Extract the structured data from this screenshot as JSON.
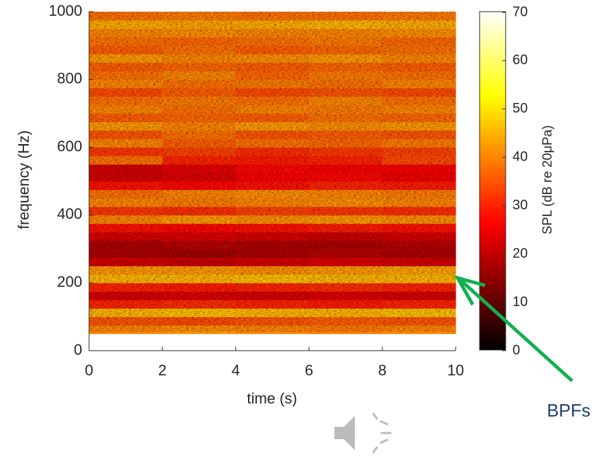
{
  "chart_data": {
    "type": "heatmap",
    "xlabel": "time (s)",
    "ylabel": "frequency (Hz)",
    "xlim": [
      0,
      10
    ],
    "xticks": [
      0,
      2,
      4,
      6,
      8,
      10
    ],
    "ylim": [
      0,
      1000
    ],
    "yticks": [
      0,
      200,
      400,
      600,
      800,
      1000
    ],
    "x_bins": [
      0,
      2,
      4,
      6,
      8,
      10
    ],
    "y_bins": [
      50,
      75,
      100,
      125,
      150,
      175,
      200,
      225,
      250,
      275,
      300,
      325,
      350,
      375,
      400,
      425,
      450,
      475,
      500,
      525,
      550,
      575,
      600,
      625,
      650,
      675,
      700,
      725,
      750,
      775,
      800,
      825,
      850,
      875,
      900,
      925,
      950,
      975,
      1000
    ],
    "z": [
      [
        40,
        41,
        40,
        39,
        40
      ],
      [
        35,
        34,
        35,
        36,
        35
      ],
      [
        45,
        46,
        45,
        45,
        46
      ],
      [
        30,
        31,
        30,
        29,
        30
      ],
      [
        22,
        23,
        22,
        23,
        22
      ],
      [
        30,
        29,
        30,
        31,
        30
      ],
      [
        45,
        45,
        46,
        45,
        45
      ],
      [
        42,
        42,
        41,
        42,
        43
      ],
      [
        22,
        21,
        22,
        23,
        22
      ],
      [
        18,
        17,
        18,
        19,
        18
      ],
      [
        18,
        19,
        18,
        18,
        19
      ],
      [
        22,
        23,
        22,
        21,
        22
      ],
      [
        28,
        27,
        28,
        29,
        28
      ],
      [
        40,
        42,
        41,
        42,
        41
      ],
      [
        32,
        31,
        33,
        32,
        31
      ],
      [
        40,
        39,
        40,
        41,
        40
      ],
      [
        38,
        40,
        41,
        40,
        39
      ],
      [
        28,
        27,
        28,
        30,
        29
      ],
      [
        22,
        23,
        26,
        27,
        25
      ],
      [
        22,
        24,
        27,
        26,
        26
      ],
      [
        38,
        30,
        29,
        30,
        34
      ],
      [
        32,
        33,
        31,
        32,
        33
      ],
      [
        40,
        36,
        38,
        37,
        39
      ],
      [
        35,
        38,
        35,
        36,
        35
      ],
      [
        42,
        40,
        42,
        41,
        42
      ],
      [
        36,
        37,
        36,
        38,
        37
      ],
      [
        40,
        38,
        40,
        39,
        40
      ],
      [
        38,
        39,
        38,
        40,
        38
      ],
      [
        34,
        36,
        34,
        35,
        34
      ],
      [
        40,
        38,
        39,
        38,
        40
      ],
      [
        38,
        40,
        37,
        39,
        38
      ],
      [
        36,
        37,
        36,
        37,
        36
      ],
      [
        42,
        40,
        41,
        42,
        40
      ],
      [
        36,
        38,
        36,
        37,
        38
      ],
      [
        38,
        37,
        38,
        39,
        37
      ],
      [
        40,
        41,
        40,
        40,
        41
      ],
      [
        44,
        43,
        44,
        45,
        44
      ],
      [
        38,
        39,
        38,
        38,
        39
      ]
    ],
    "colormap": "hot",
    "clim": [
      0,
      70
    ],
    "cticks": [
      0,
      10,
      20,
      30,
      40,
      50,
      60,
      70
    ],
    "clabel": "SPL (dB re 20μPa)",
    "annotation": "BPFs",
    "annotation_color": "#1f3f6e",
    "arrow_color": "#12b050"
  }
}
